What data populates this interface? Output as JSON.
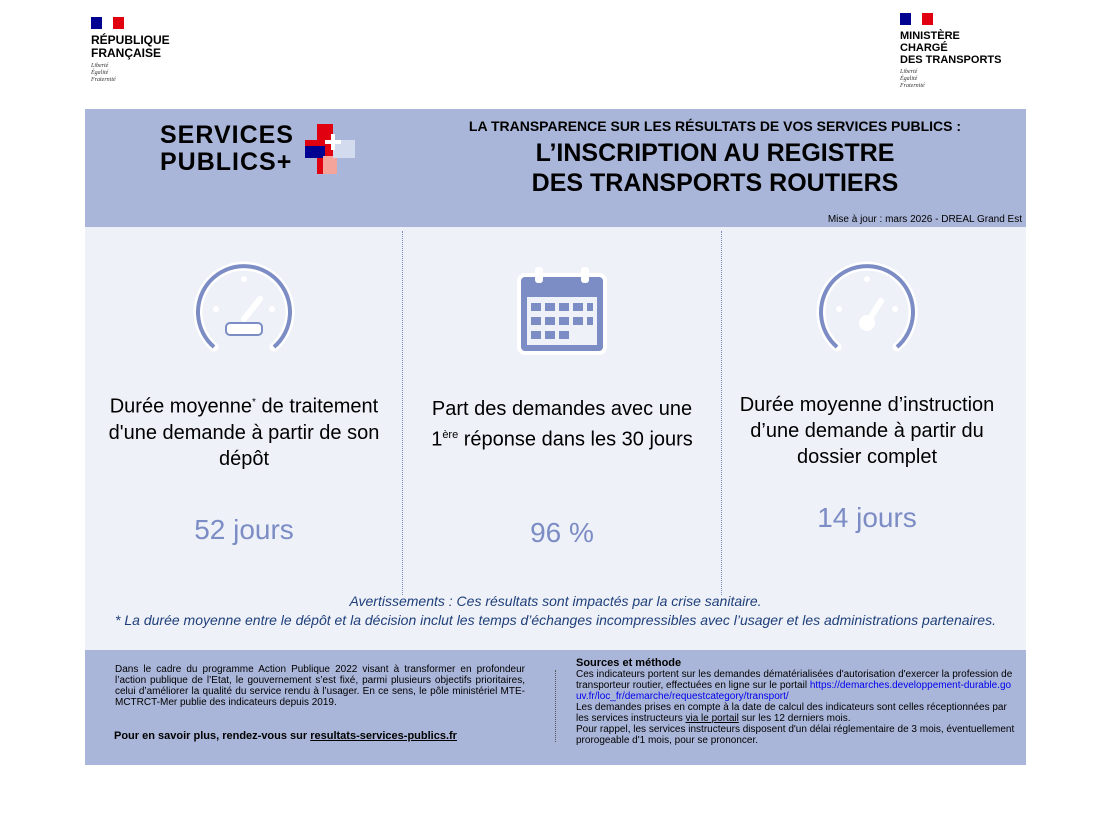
{
  "left_logo": {
    "title_line1": "RÉPUBLIQUE",
    "title_line2": "FRANÇAISE",
    "motto": [
      "Liberté",
      "Égalité",
      "Fraternité"
    ]
  },
  "right_logo": {
    "title_line1": "MINISTÈRE",
    "title_line2": "CHARGÉ",
    "title_line3": "DES TRANSPORTS",
    "motto": [
      "Liberté",
      "Égalité",
      "Fraternité"
    ]
  },
  "brand": {
    "line1": "SERVICES",
    "line2": "PUBLICS+"
  },
  "header": {
    "kicker": "LA TRANSPARENCE SUR LES  RÉSULTATS DE VOS SERVICES PUBLICS :",
    "title_line1": "L’INSCRIPTION AU REGISTRE",
    "title_line2": "DES TRANSPORTS ROUTIERS",
    "update": "Mise à jour : mars 2026 - DREAL Grand Est"
  },
  "indicators": [
    {
      "icon": "speedometer-icon",
      "label_a": "Durée moyenne",
      "sup": "*",
      "label_b": " de traitement d'une demande à partir de son dépôt",
      "value": "52 jours"
    },
    {
      "icon": "calendar-icon",
      "label_a": "Part des demandes avec une 1",
      "sup": "ère",
      "label_b": " réponse dans les 30 jours",
      "value": "96 %"
    },
    {
      "icon": "speedometer-icon",
      "label_a": "Durée moyenne d’instruction d’une demande à partir du dossier complet",
      "sup": "",
      "label_b": "",
      "value": "14 jours"
    }
  ],
  "warnings": {
    "line1": "Avertissements : Ces résultats sont impactés par la crise sanitaire.",
    "line2": "* La durée moyenne entre le dépôt et la décision inclut les temps d’échanges incompressibles avec l’usager et les administrations partenaires."
  },
  "footer": {
    "intro": "Dans le cadre du programme Action Publique 2022 visant à transformer en profondeur l’action publique de l’Etat, le gouvernement s’est fixé, parmi plusieurs objectifs prioritaires, celui d’améliorer la qualité du service rendu à l’usager. En ce sens, le pôle ministériel MTE-MCTRCT-Mer publie des indicateurs depuis 2019.",
    "more_prefix": "Pour en savoir plus, rendez-vous sur ",
    "more_link": "resultats-services-publics.fr",
    "sources_title": "Sources et méthode",
    "sources_p1": "Ces indicateurs portent sur les demandes dématérialisées d'autorisation d'exercer la profession de transporteur routier, effectuées en ligne sur le portail ",
    "sources_link": "https://demarches.developpement-durable.gouv.fr/loc_fr/demarche/requestcategory/transport/",
    "sources_p2a": "Les demandes prises en compte à la date de calcul des indicateurs sont celles réceptionnées par les services instructeurs ",
    "sources_p2link": "via le portail",
    "sources_p2b": " sur les 12 derniers mois.",
    "sources_p3": "Pour rappel, les services instructeurs disposent d'un délai réglementaire de 3 mois, éventuellement prorogeable d'1 mois, pour se prononcer."
  }
}
